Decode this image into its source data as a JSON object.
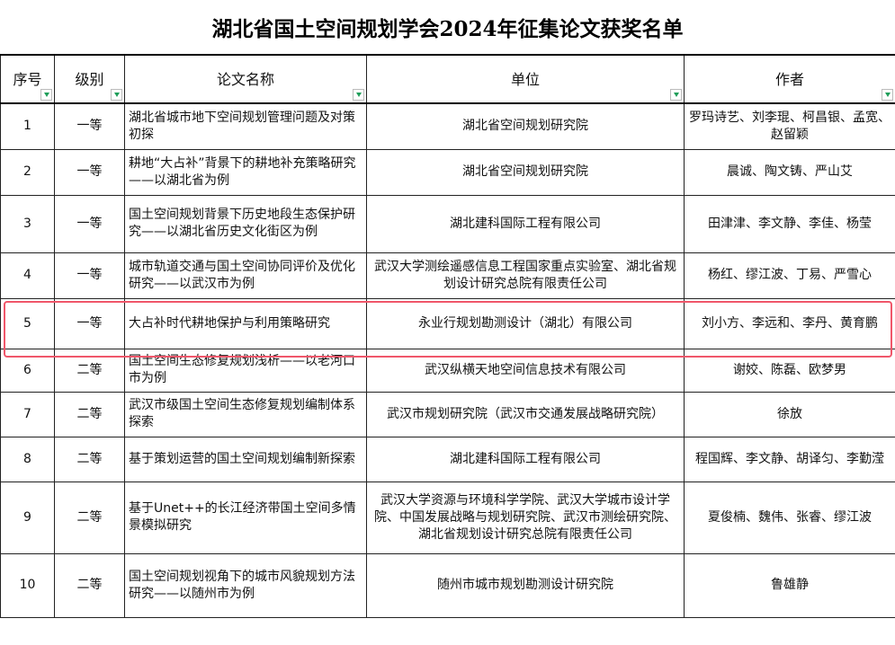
{
  "title": "湖北省国土空间规划学会2024年征集论文获奖名单",
  "headers": [
    "序号",
    "级别",
    "论文名称",
    "单位",
    "作者"
  ],
  "rows": [
    {
      "no": "1",
      "level": "一等",
      "paper": "湖北省城市地下空间规划管理问题及对策初探",
      "unit": "湖北省空间规划研究院",
      "authors": "罗玛诗艺、刘李琨、柯昌银、孟宽、赵留颖"
    },
    {
      "no": "2",
      "level": "一等",
      "paper": "耕地“大占补”背景下的耕地补充策略研究——以湖北省为例",
      "unit": "湖北省空间规划研究院",
      "authors": "晨诚、陶文铸、严山艾"
    },
    {
      "no": "3",
      "level": "一等",
      "paper": "国土空间规划背景下历史地段生态保护研究——以湖北省历史文化街区为例",
      "unit": "湖北建科国际工程有限公司",
      "authors": "田津津、李文静、李佳、杨莹"
    },
    {
      "no": "4",
      "level": "一等",
      "paper": "城市轨道交通与国土空间协同评价及优化研究——以武汉市为例",
      "unit": "武汉大学测绘遥感信息工程国家重点实验室、湖北省规划设计研究总院有限责任公司",
      "authors": "杨红、缪江波、丁易、严雪心"
    },
    {
      "no": "5",
      "level": "一等",
      "paper": "大占补时代耕地保护与利用策略研究",
      "unit": "永业行规划勘测设计（湖北）有限公司",
      "authors": "刘小方、李远和、李丹、黄育鹏"
    },
    {
      "no": "6",
      "level": "二等",
      "paper": "国土空间生态修复规划浅析——以老河口市为例",
      "unit": "武汉纵横天地空间信息技术有限公司",
      "authors": "谢姣、陈磊、欧梦男"
    },
    {
      "no": "7",
      "level": "二等",
      "paper": "武汉市级国土空间生态修复规划编制体系探索",
      "unit": "武汉市规划研究院（武汉市交通发展战略研究院）",
      "authors": "徐放"
    },
    {
      "no": "8",
      "level": "二等",
      "paper": "基于策划运营的国土空间规划编制新探索",
      "unit": "湖北建科国际工程有限公司",
      "authors": "程国辉、李文静、胡译匀、李勤滢"
    },
    {
      "no": "9",
      "level": "二等",
      "paper": "基于Unet++的长江经济带国土空间多情景模拟研究",
      "unit": "武汉大学资源与环境科学学院、武汉大学城市设计学院、中国发展战略与规划研究院、武汉市测绘研究院、湖北省规划设计研究总院有限责任公司",
      "authors": "夏俊楠、魏伟、张睿、缪江波"
    },
    {
      "no": "10",
      "level": "二等",
      "paper": "国土空间规划视角下的城市风貌规划方法研究——以随州市为例",
      "unit": "随州市城市规划勘测设计研究院",
      "authors": "鲁雄静"
    }
  ],
  "colors": {
    "highlight": "#f0566a",
    "filter_arrow": "#1f9e5a"
  }
}
